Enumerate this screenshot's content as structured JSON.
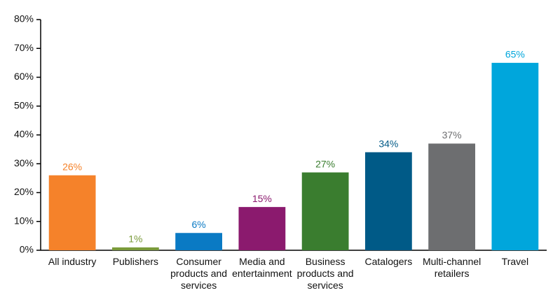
{
  "chart_data": {
    "type": "bar",
    "categories": [
      "All industry",
      "Publishers",
      "Consumer products and services",
      "Media and entertainment",
      "Business products and services",
      "Catalogers",
      "Multi-channel retailers",
      "Travel"
    ],
    "values": [
      26,
      1,
      6,
      15,
      27,
      34,
      37,
      65
    ],
    "value_labels": [
      "26%",
      "1%",
      "6%",
      "15%",
      "27%",
      "34%",
      "37%",
      "65%"
    ],
    "colors": [
      "#f5822a",
      "#7a9a3a",
      "#0a7ac4",
      "#8b1a6e",
      "#3a7d2f",
      "#005a87",
      "#6d6e70",
      "#00a6dc"
    ],
    "ylim": [
      0,
      80
    ],
    "yticks": [
      {
        "value": 0,
        "label": "0%"
      },
      {
        "value": 10,
        "label": "10%"
      },
      {
        "value": 20,
        "label": "20%"
      },
      {
        "value": 30,
        "label": "30%"
      },
      {
        "value": 40,
        "label": "40%"
      },
      {
        "value": 50,
        "label": "50%"
      },
      {
        "value": 60,
        "label": "60%"
      },
      {
        "value": 70,
        "label": "70%"
      },
      {
        "value": 80,
        "label": "80%"
      }
    ],
    "grid": false
  }
}
